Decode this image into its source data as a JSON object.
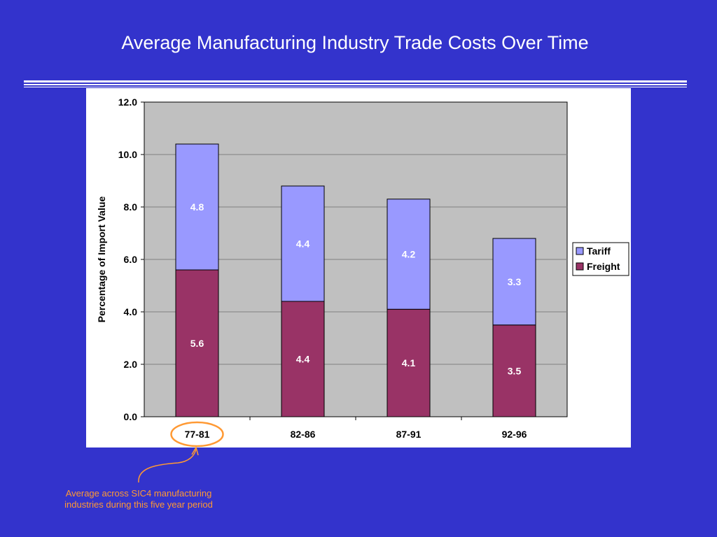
{
  "slide": {
    "title": "Average Manufacturing Industry Trade Costs Over Time",
    "callout_text": "Average across SIC4 manufacturing industries during this five year period",
    "accent_color": "#ff9933"
  },
  "chart_data": {
    "type": "bar",
    "stacked": true,
    "categories": [
      "77-81",
      "82-86",
      "87-91",
      "92-96"
    ],
    "series": [
      {
        "name": "Freight",
        "values": [
          5.6,
          4.4,
          4.1,
          3.5
        ],
        "color": "#993366",
        "labels": [
          "5.6",
          "4.4",
          "4.1",
          "3.5"
        ]
      },
      {
        "name": "Tariff",
        "values": [
          4.8,
          4.4,
          4.2,
          3.3
        ],
        "color": "#9999ff",
        "labels": [
          "4.8",
          "4.4",
          "4.2",
          "3.3"
        ]
      }
    ],
    "ylabel": "Percentage of Import Value",
    "xlabel": "",
    "ylim": [
      0,
      12
    ],
    "yticks": [
      "0.0",
      "2.0",
      "4.0",
      "6.0",
      "8.0",
      "10.0",
      "12.0"
    ],
    "grid": true,
    "legend_position": "right",
    "plot_background": "#c0c0c0",
    "highlighted_category": "77-81"
  }
}
